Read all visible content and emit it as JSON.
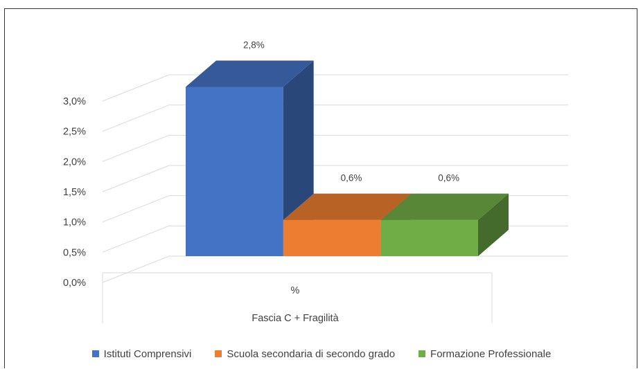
{
  "chart_data": {
    "type": "bar",
    "categories": [
      "%"
    ],
    "group_label": "Fascia C + Fragilità",
    "series": [
      {
        "name": "Istituti Comprensivi",
        "values": [
          2.8
        ],
        "label": "2,8%",
        "color": "#4472c4"
      },
      {
        "name": "Scuola secondaria di secondo grado",
        "values": [
          0.6
        ],
        "label": "0,6%",
        "color": "#ed7d31"
      },
      {
        "name": "Formazione Professionale",
        "values": [
          0.6
        ],
        "label": "0,6%",
        "color": "#70ad47"
      }
    ],
    "ylim": [
      0,
      3.0
    ],
    "yticks": [
      {
        "value": 0.0,
        "label": "0,0%"
      },
      {
        "value": 0.5,
        "label": "0,5%"
      },
      {
        "value": 1.0,
        "label": "1,0%"
      },
      {
        "value": 1.5,
        "label": "1,5%"
      },
      {
        "value": 2.0,
        "label": "2,0%"
      },
      {
        "value": 2.5,
        "label": "2,5%"
      },
      {
        "value": 3.0,
        "label": "3,0%"
      }
    ],
    "grid": true,
    "legend_position": "bottom",
    "style": "3d-clustered-column"
  }
}
